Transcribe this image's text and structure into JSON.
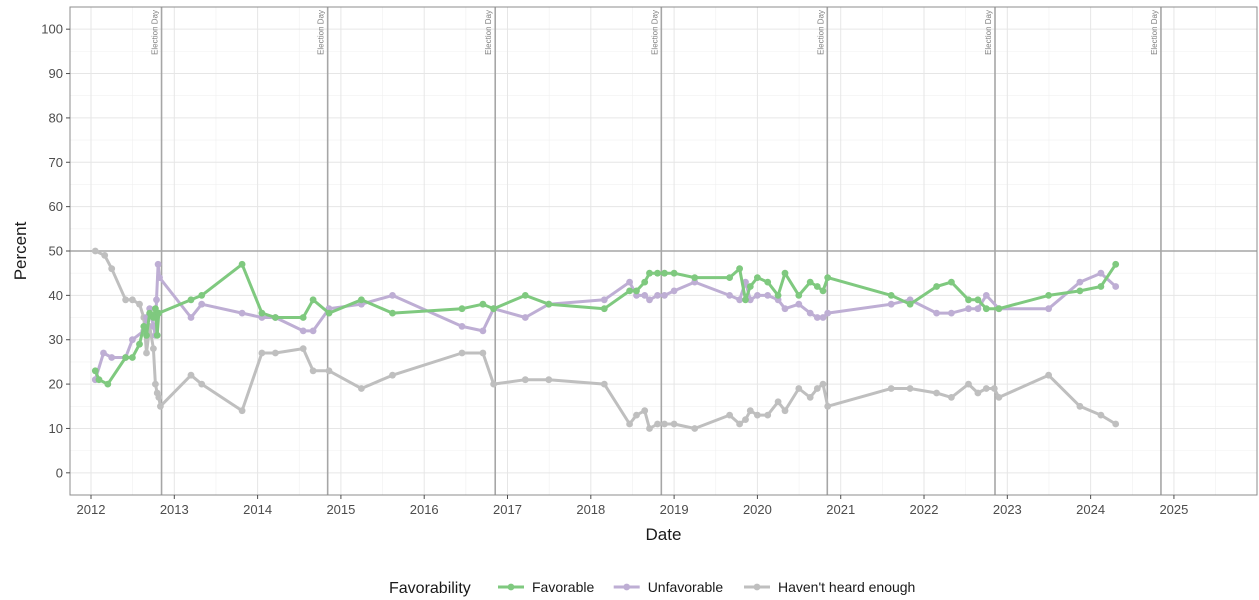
{
  "chart_data": {
    "type": "line",
    "xlabel": "Date",
    "ylabel": "Percent",
    "xlim": [
      "2011-10-01",
      "2025-12-31"
    ],
    "ylim": [
      -5,
      105
    ],
    "x_ticks": [
      "2012",
      "2013",
      "2014",
      "2015",
      "2016",
      "2017",
      "2018",
      "2019",
      "2020",
      "2021",
      "2022",
      "2023",
      "2024",
      "2025"
    ],
    "y_ticks": [
      0,
      10,
      20,
      30,
      40,
      50,
      60,
      70,
      80,
      90,
      100
    ],
    "hline": 50,
    "vlines": {
      "label": "Election Day",
      "dates": [
        "2012-11-06",
        "2014-11-04",
        "2016-11-08",
        "2018-11-06",
        "2020-11-03",
        "2022-11-08",
        "2024-11-05"
      ]
    },
    "grid": true,
    "legend": {
      "title": "Favorability",
      "position": "bottom",
      "entries": [
        "Favorable",
        "Unfavorable",
        "Haven't heard enough"
      ]
    },
    "series": [
      {
        "name": "Favorable",
        "color": "#7fc97f",
        "points": [
          [
            "2012-01-20",
            23
          ],
          [
            "2012-02-05",
            21
          ],
          [
            "2012-03-15",
            20
          ],
          [
            "2012-06-01",
            26
          ],
          [
            "2012-07-01",
            26
          ],
          [
            "2012-08-01",
            29
          ],
          [
            "2012-08-20",
            33
          ],
          [
            "2012-09-01",
            31
          ],
          [
            "2012-09-15",
            36
          ],
          [
            "2012-10-01",
            35
          ],
          [
            "2012-10-10",
            37
          ],
          [
            "2012-10-18",
            31
          ],
          [
            "2012-10-25",
            36
          ],
          [
            "2013-03-15",
            39
          ],
          [
            "2013-05-01",
            40
          ],
          [
            "2013-10-25",
            47
          ],
          [
            "2014-01-20",
            36
          ],
          [
            "2014-03-20",
            35
          ],
          [
            "2014-07-20",
            35
          ],
          [
            "2014-09-01",
            39
          ],
          [
            "2014-11-10",
            36
          ],
          [
            "2015-04-01",
            39
          ],
          [
            "2015-08-15",
            36
          ],
          [
            "2016-06-15",
            37
          ],
          [
            "2016-09-15",
            38
          ],
          [
            "2016-11-01",
            37
          ],
          [
            "2017-03-20",
            40
          ],
          [
            "2017-07-01",
            38
          ],
          [
            "2018-03-01",
            37
          ],
          [
            "2018-06-20",
            41
          ],
          [
            "2018-07-20",
            41
          ],
          [
            "2018-08-25",
            43
          ],
          [
            "2018-09-15",
            45
          ],
          [
            "2018-10-20",
            45
          ],
          [
            "2018-11-20",
            45
          ],
          [
            "2019-01-01",
            45
          ],
          [
            "2019-04-01",
            44
          ],
          [
            "2019-09-01",
            44
          ],
          [
            "2019-10-15",
            46
          ],
          [
            "2019-11-10",
            39
          ],
          [
            "2019-12-01",
            42
          ],
          [
            "2020-01-01",
            44
          ],
          [
            "2020-02-15",
            43
          ],
          [
            "2020-04-01",
            40
          ],
          [
            "2020-05-01",
            45
          ],
          [
            "2020-07-01",
            40
          ],
          [
            "2020-08-20",
            43
          ],
          [
            "2020-09-20",
            42
          ],
          [
            "2020-10-15",
            41
          ],
          [
            "2020-11-05",
            44
          ],
          [
            "2021-08-10",
            40
          ],
          [
            "2021-11-01",
            38
          ],
          [
            "2022-02-25",
            42
          ],
          [
            "2022-05-01",
            43
          ],
          [
            "2022-07-15",
            39
          ],
          [
            "2022-08-25",
            39
          ],
          [
            "2022-10-01",
            37
          ],
          [
            "2022-11-25",
            37
          ],
          [
            "2023-07-01",
            40
          ],
          [
            "2023-11-15",
            41
          ],
          [
            "2024-02-15",
            42
          ],
          [
            "2024-04-20",
            47
          ]
        ]
      },
      {
        "name": "Unfavorable",
        "color": "#beaed4",
        "points": [
          [
            "2012-01-20",
            21
          ],
          [
            "2012-02-25",
            27
          ],
          [
            "2012-04-01",
            26
          ],
          [
            "2012-06-01",
            26
          ],
          [
            "2012-07-01",
            30
          ],
          [
            "2012-08-20",
            32
          ],
          [
            "2012-09-01",
            35
          ],
          [
            "2012-09-15",
            37
          ],
          [
            "2012-10-01",
            33
          ],
          [
            "2012-10-10",
            31
          ],
          [
            "2012-10-15",
            39
          ],
          [
            "2012-10-22",
            47
          ],
          [
            "2012-10-28",
            44
          ],
          [
            "2013-03-15",
            35
          ],
          [
            "2013-05-01",
            38
          ],
          [
            "2013-10-25",
            36
          ],
          [
            "2014-01-20",
            35
          ],
          [
            "2014-03-20",
            35
          ],
          [
            "2014-07-20",
            32
          ],
          [
            "2014-09-01",
            32
          ],
          [
            "2014-11-10",
            37
          ],
          [
            "2015-04-01",
            38
          ],
          [
            "2015-08-15",
            40
          ],
          [
            "2016-06-15",
            33
          ],
          [
            "2016-09-15",
            32
          ],
          [
            "2016-11-01",
            37
          ],
          [
            "2017-03-20",
            35
          ],
          [
            "2017-07-01",
            38
          ],
          [
            "2018-03-01",
            39
          ],
          [
            "2018-06-20",
            43
          ],
          [
            "2018-07-20",
            40
          ],
          [
            "2018-08-25",
            40
          ],
          [
            "2018-09-15",
            39
          ],
          [
            "2018-10-20",
            40
          ],
          [
            "2018-11-20",
            40
          ],
          [
            "2019-01-01",
            41
          ],
          [
            "2019-04-01",
            43
          ],
          [
            "2019-09-01",
            40
          ],
          [
            "2019-10-15",
            39
          ],
          [
            "2019-11-10",
            43
          ],
          [
            "2019-12-01",
            39
          ],
          [
            "2020-01-01",
            40
          ],
          [
            "2020-02-15",
            40
          ],
          [
            "2020-04-01",
            39
          ],
          [
            "2020-05-01",
            37
          ],
          [
            "2020-07-01",
            38
          ],
          [
            "2020-08-20",
            36
          ],
          [
            "2020-09-20",
            35
          ],
          [
            "2020-10-15",
            35
          ],
          [
            "2020-11-05",
            36
          ],
          [
            "2021-08-10",
            38
          ],
          [
            "2021-11-01",
            39
          ],
          [
            "2022-02-25",
            36
          ],
          [
            "2022-05-01",
            36
          ],
          [
            "2022-07-15",
            37
          ],
          [
            "2022-08-25",
            37
          ],
          [
            "2022-10-01",
            40
          ],
          [
            "2022-11-25",
            37
          ],
          [
            "2023-07-01",
            37
          ],
          [
            "2023-11-15",
            43
          ],
          [
            "2024-02-15",
            45
          ],
          [
            "2024-04-20",
            42
          ]
        ]
      },
      {
        "name": "Haven't heard enough",
        "color": "#bfbfbf",
        "points": [
          [
            "2012-01-20",
            50
          ],
          [
            "2012-03-01",
            49
          ],
          [
            "2012-04-01",
            46
          ],
          [
            "2012-06-01",
            39
          ],
          [
            "2012-07-01",
            39
          ],
          [
            "2012-08-01",
            38
          ],
          [
            "2012-08-20",
            35
          ],
          [
            "2012-09-01",
            27
          ],
          [
            "2012-09-15",
            33
          ],
          [
            "2012-10-01",
            28
          ],
          [
            "2012-10-10",
            20
          ],
          [
            "2012-10-18",
            18
          ],
          [
            "2012-10-25",
            17
          ],
          [
            "2012-11-01",
            15
          ],
          [
            "2013-03-15",
            22
          ],
          [
            "2013-05-01",
            20
          ],
          [
            "2013-10-25",
            14
          ],
          [
            "2014-01-20",
            27
          ],
          [
            "2014-03-20",
            27
          ],
          [
            "2014-07-20",
            28
          ],
          [
            "2014-09-01",
            23
          ],
          [
            "2014-11-10",
            23
          ],
          [
            "2015-04-01",
            19
          ],
          [
            "2015-08-15",
            22
          ],
          [
            "2016-06-15",
            27
          ],
          [
            "2016-09-15",
            27
          ],
          [
            "2016-11-01",
            20
          ],
          [
            "2017-03-20",
            21
          ],
          [
            "2017-07-01",
            21
          ],
          [
            "2018-03-01",
            20
          ],
          [
            "2018-06-20",
            11
          ],
          [
            "2018-07-20",
            13
          ],
          [
            "2018-08-25",
            14
          ],
          [
            "2018-09-15",
            10
          ],
          [
            "2018-10-20",
            11
          ],
          [
            "2018-11-20",
            11
          ],
          [
            "2019-01-01",
            11
          ],
          [
            "2019-04-01",
            10
          ],
          [
            "2019-09-01",
            13
          ],
          [
            "2019-10-15",
            11
          ],
          [
            "2019-11-10",
            12
          ],
          [
            "2019-12-01",
            14
          ],
          [
            "2020-01-01",
            13
          ],
          [
            "2020-02-15",
            13
          ],
          [
            "2020-04-01",
            16
          ],
          [
            "2020-05-01",
            14
          ],
          [
            "2020-07-01",
            19
          ],
          [
            "2020-08-20",
            17
          ],
          [
            "2020-09-20",
            19
          ],
          [
            "2020-10-15",
            20
          ],
          [
            "2020-11-05",
            15
          ],
          [
            "2021-08-10",
            19
          ],
          [
            "2021-11-01",
            19
          ],
          [
            "2022-02-25",
            18
          ],
          [
            "2022-05-01",
            17
          ],
          [
            "2022-07-15",
            20
          ],
          [
            "2022-08-25",
            18
          ],
          [
            "2022-10-01",
            19
          ],
          [
            "2022-11-05",
            19
          ],
          [
            "2022-11-25",
            17
          ],
          [
            "2023-07-01",
            22
          ],
          [
            "2023-11-15",
            15
          ],
          [
            "2024-02-15",
            13
          ],
          [
            "2024-04-20",
            11
          ]
        ]
      }
    ]
  }
}
